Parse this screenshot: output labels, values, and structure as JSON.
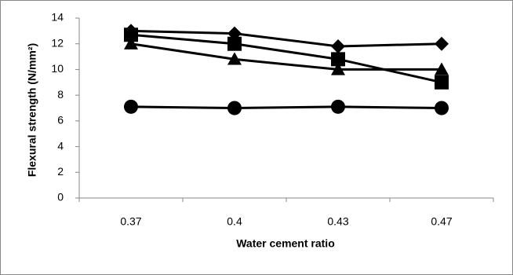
{
  "chart_data": {
    "type": "line",
    "x_label": "Water cement ratio",
    "y_label": "Flexural strength (N/mm²)",
    "categories": [
      "0.37",
      "0.4",
      "0.43",
      "0.47"
    ],
    "series": [
      {
        "color": "#000000",
        "marker": "diamond",
        "values": [
          13.0,
          12.8,
          11.8,
          12.0
        ]
      },
      {
        "color": "#000000",
        "marker": "square",
        "values": [
          12.7,
          12.0,
          10.8,
          9.0
        ]
      },
      {
        "color": "#000000",
        "marker": "triangle",
        "values": [
          12.0,
          10.8,
          10.0,
          10.0
        ]
      },
      {
        "color": "#000000",
        "marker": "circle",
        "values": [
          7.1,
          7.0,
          7.1,
          7.0
        ]
      }
    ],
    "ylim": [
      0,
      14
    ],
    "yticks": [
      0,
      2,
      4,
      6,
      8,
      10,
      12,
      14
    ],
    "grid": false
  }
}
